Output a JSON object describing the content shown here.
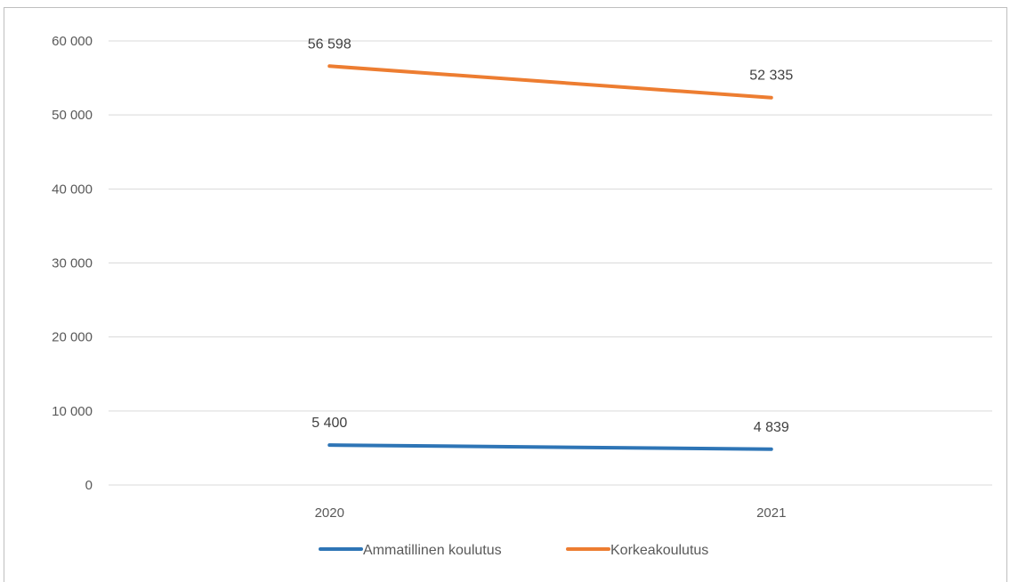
{
  "chart_data": {
    "type": "line",
    "categories": [
      "2020",
      "2021"
    ],
    "series": [
      {
        "name": "Ammatillinen koulutus",
        "values": [
          5400,
          4839
        ],
        "labels": [
          "5 400",
          "4 839"
        ],
        "color": "#2e75b6"
      },
      {
        "name": "Korkeakoulutus",
        "values": [
          56598,
          52335
        ],
        "labels": [
          "56 598",
          "52 335"
        ],
        "color": "#ed7d31"
      }
    ],
    "ylim": [
      0,
      60000
    ],
    "yticks": [
      0,
      10000,
      20000,
      30000,
      40000,
      50000,
      60000
    ],
    "ytick_labels": [
      "0",
      "10 000",
      "20 000",
      "30 000",
      "40 000",
      "50 000",
      "60 000"
    ],
    "grid": true,
    "legend": "bottom"
  }
}
